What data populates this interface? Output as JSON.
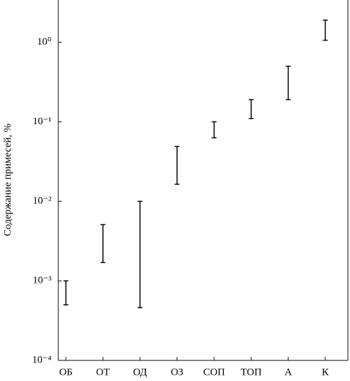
{
  "chart_data": {
    "type": "range",
    "y_label": "Содержание примесей, %",
    "categories": [
      "ОБ",
      "ОТ",
      "ОД",
      "ОЗ",
      "СОП",
      "ТОП",
      "А",
      "К"
    ],
    "low": [
      0.0005,
      0.0017,
      0.00046,
      0.0164,
      0.063,
      0.11,
      0.19,
      1.06
    ],
    "high": [
      0.001,
      0.0051,
      0.01,
      0.049,
      0.1,
      0.19,
      0.5,
      1.9
    ],
    "color": "#000000",
    "log_y": true,
    "ylim": [
      0.0001,
      3.4
    ],
    "yticks": [
      {
        "value": 0.0001,
        "label": "10⁻⁴"
      },
      {
        "value": 0.001,
        "label": "10⁻³"
      },
      {
        "value": 0.01,
        "label": "10⁻²"
      },
      {
        "value": 0.1,
        "label": "10⁻¹"
      },
      {
        "value": 1,
        "label": "10⁰"
      }
    ]
  }
}
